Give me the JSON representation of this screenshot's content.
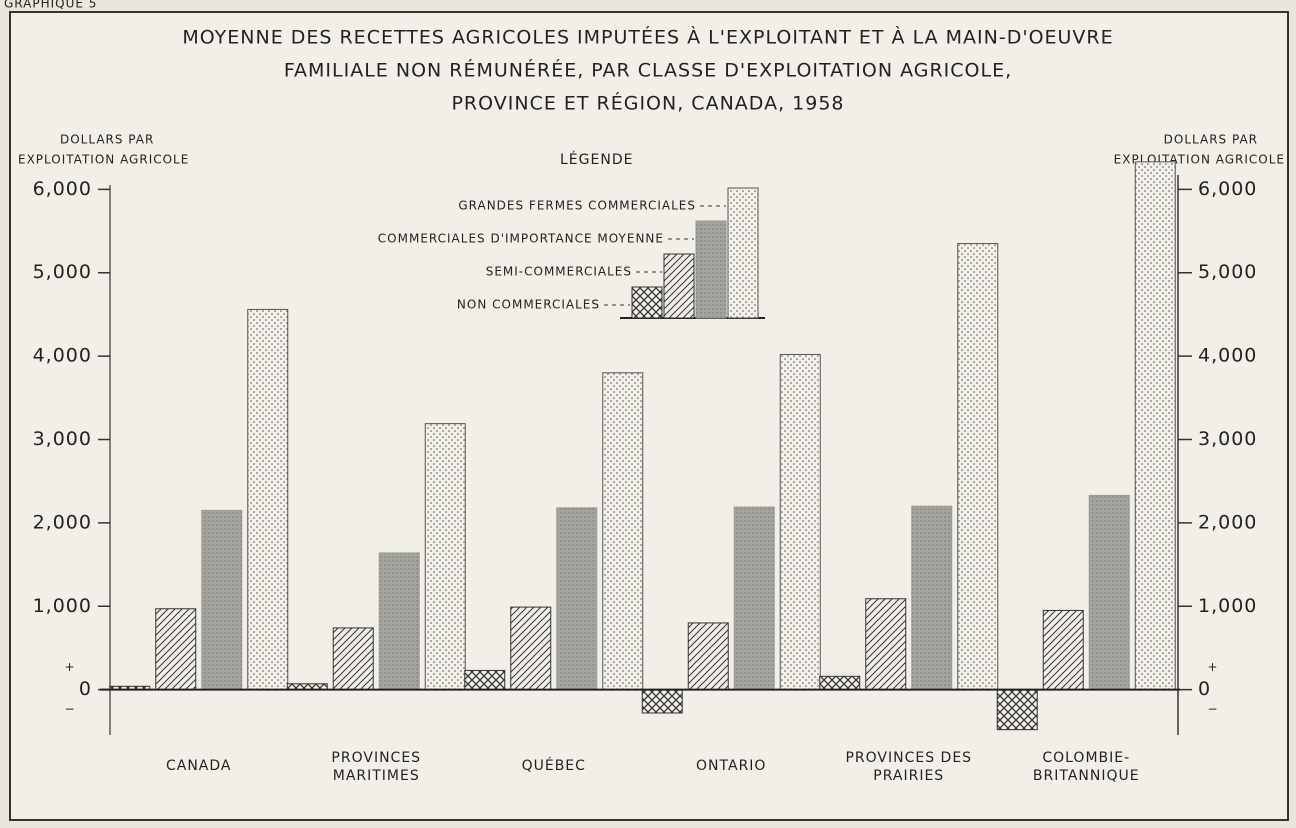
{
  "chart_data": {
    "type": "bar",
    "figure_label": "GRAPHIQUE 5",
    "title": [
      "MOYENNE DES RECETTES AGRICOLES IMPUTÉES À L'EXPLOITANT ET À LA MAIN-D'OEUVRE",
      "FAMILIALE NON RÉMUNÉRÉE, PAR CLASSE D'EXPLOITATION AGRICOLE,",
      "PROVINCE ET RÉGION, CANADA, 1958"
    ],
    "ylabel": [
      "DOLLARS PAR",
      "EXPLOITATION AGRICOLE"
    ],
    "y2label": [
      "DOLLARS PAR",
      "EXPLOITATION AGRICOLE"
    ],
    "legend_title": "LÉGENDE",
    "sign_labels": [
      "+",
      "−"
    ],
    "categories": [
      [
        "CANADA"
      ],
      [
        "PROVINCES",
        "MARITIMES"
      ],
      [
        "QUÉBEC"
      ],
      [
        "ONTARIO"
      ],
      [
        "PROVINCES DES",
        "PRAIRIES"
      ],
      [
        "COLOMBIE-",
        "BRITANNIQUE"
      ]
    ],
    "series": [
      {
        "name": "NON COMMERCIALES",
        "pattern": "crosshatch",
        "color": "#333333",
        "values": [
          40,
          70,
          230,
          -280,
          160,
          -480
        ]
      },
      {
        "name": "SEMI-COMMERCIALES",
        "pattern": "diagonal",
        "color": "#333333",
        "values": [
          970,
          740,
          990,
          800,
          1090,
          950
        ]
      },
      {
        "name": "COMMERCIALES D'IMPORTANCE MOYENNE",
        "pattern": "gray",
        "color": "#9a9a94",
        "values": [
          2150,
          1640,
          2180,
          2190,
          2200,
          2330
        ]
      },
      {
        "name": "GRANDES FERMES COMMERCIALES",
        "pattern": "dots",
        "color": "#555555",
        "values": [
          4560,
          3190,
          3800,
          4020,
          5350,
          6330
        ]
      }
    ],
    "ylim": [
      -700,
      6700
    ],
    "yticks": [
      0,
      {
        "value": 1000,
        "label": "1,000"
      },
      {
        "value": 2000,
        "label": "2,000"
      },
      {
        "value": 3000,
        "label": "3,000"
      },
      {
        "value": 4000,
        "label": "4,000"
      },
      {
        "value": 5000,
        "label": "5,000"
      },
      {
        "value": 6000,
        "label": "6,000"
      }
    ],
    "y2lim": [
      -700,
      6700
    ],
    "y2ticks": [
      0,
      {
        "value": 1000,
        "label": "1,000"
      },
      {
        "value": 2000,
        "label": "2,000"
      },
      {
        "value": 3000,
        "label": "3,000"
      },
      {
        "value": 4000,
        "label": "4,000"
      },
      {
        "value": 5000,
        "label": "5,000"
      },
      {
        "value": 6000,
        "label": "6,000"
      }
    ]
  }
}
